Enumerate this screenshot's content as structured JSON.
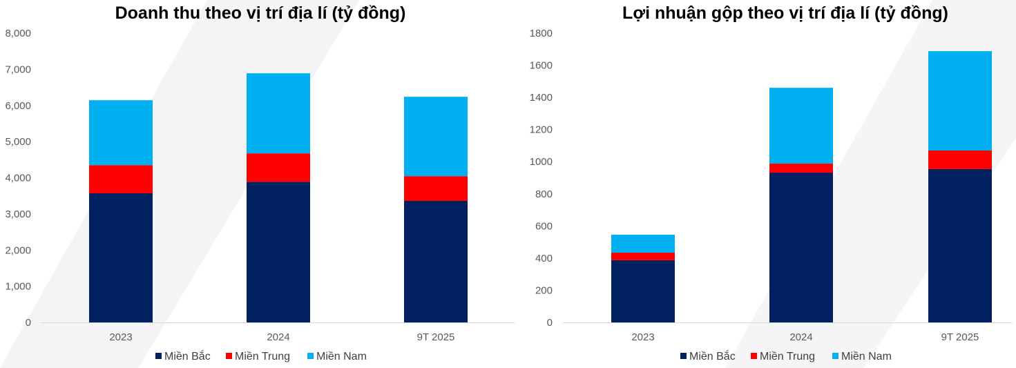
{
  "chart_data": [
    {
      "type": "bar",
      "stacked": true,
      "title": "Doanh thu theo vị trí địa lí (tỷ đồng)",
      "categories": [
        "2023",
        "2024",
        "9T 2025"
      ],
      "ylim": [
        0,
        8000
      ],
      "yticks": [
        0,
        1000,
        2000,
        3000,
        4000,
        5000,
        6000,
        7000,
        8000
      ],
      "ytick_labels": [
        "0",
        "1,000",
        "2,000",
        "3,000",
        "4,000",
        "5,000",
        "6,000",
        "7,000",
        "8,000"
      ],
      "series": [
        {
          "name": "Miền Bắc",
          "color": "#002060",
          "values": [
            3570,
            3890,
            3360
          ]
        },
        {
          "name": "Miền Trung",
          "color": "#FF0000",
          "values": [
            780,
            785,
            685
          ]
        },
        {
          "name": "Miền Nam",
          "color": "#00B0F0",
          "values": [
            1795,
            2215,
            2195
          ]
        }
      ],
      "legend": "bottom"
    },
    {
      "type": "bar",
      "stacked": true,
      "title": "Lợi nhuận gộp theo vị trí địa lí (tỷ đồng)",
      "categories": [
        "2023",
        "2024",
        "9T 2025"
      ],
      "ylim": [
        0,
        1800
      ],
      "yticks": [
        0,
        200,
        400,
        600,
        800,
        1000,
        1200,
        1400,
        1600,
        1800
      ],
      "ytick_labels": [
        "0",
        "200",
        "400",
        "600",
        "800",
        "1000",
        "1200",
        "1400",
        "1600",
        "1800"
      ],
      "series": [
        {
          "name": "Miền Bắc",
          "color": "#002060",
          "values": [
            387,
            932,
            954
          ]
        },
        {
          "name": "Miền Trung",
          "color": "#FF0000",
          "values": [
            47,
            56,
            116
          ]
        },
        {
          "name": "Miền Nam",
          "color": "#00B0F0",
          "values": [
            112,
            472,
            618
          ]
        }
      ],
      "legend": "bottom"
    }
  ]
}
